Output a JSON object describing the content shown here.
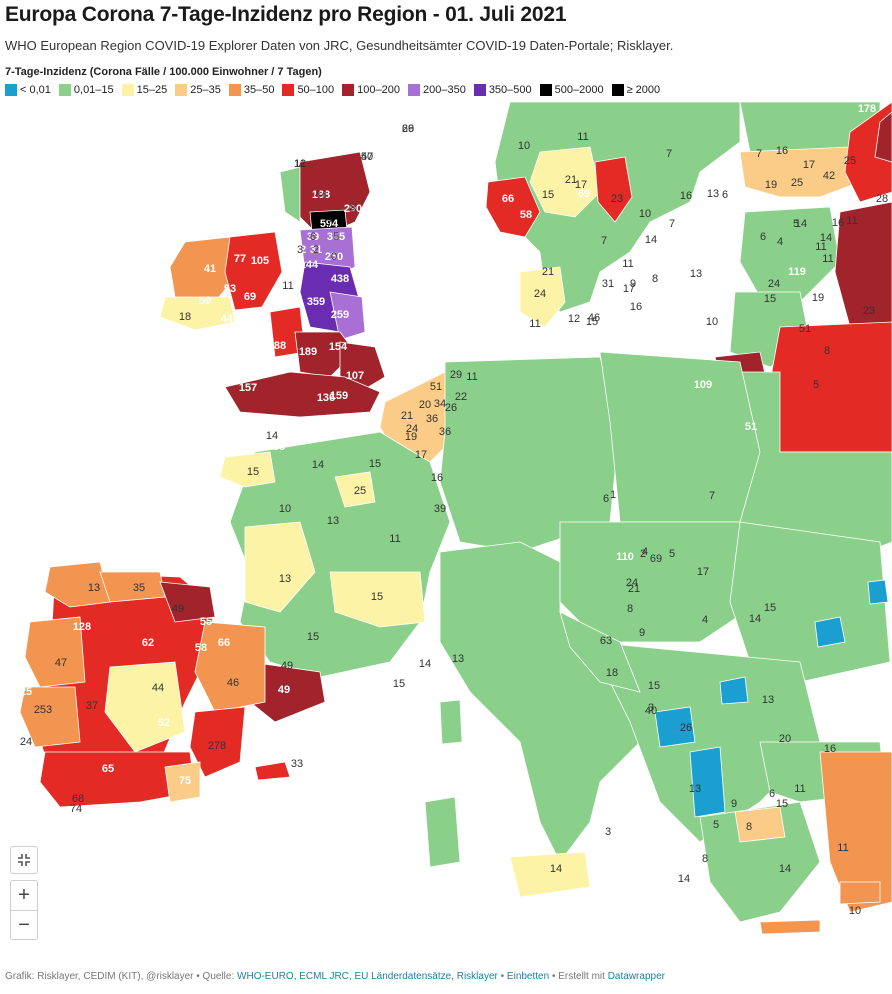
{
  "header": {
    "title": "Europa Corona 7-Tage-Inzidenz pro Region - 01. Juli 2021",
    "subtitle": "WHO European Region COVID-19 Explorer Daten von JRC, Gesundheitsämter COVID-19  Daten-Portale; Risklayer."
  },
  "legend": {
    "title": "7-Tage-Inzidenz (Corona Fälle / 100.000 Einwohner / 7 Tagen)",
    "items": [
      {
        "label": "< 0,01",
        "color": "#1b9fd1"
      },
      {
        "label": "0,01–15",
        "color": "#8ad08a"
      },
      {
        "label": "15–25",
        "color": "#fdf3a6"
      },
      {
        "label": "25–35",
        "color": "#fbcc88"
      },
      {
        "label": "35–50",
        "color": "#f29550"
      },
      {
        "label": "50–100",
        "color": "#e42a24"
      },
      {
        "label": "100–200",
        "color": "#a1232b"
      },
      {
        "label": "200–350",
        "color": "#a86fd5"
      },
      {
        "label": "350–500",
        "color": "#6a2cb0"
      },
      {
        "label": "500–2000",
        "color": "#000000"
      },
      {
        "label": "≥ 2000",
        "color": "#000000"
      }
    ]
  },
  "colors": {
    "green": "#8ad08a",
    "yellow": "#fdf3a6",
    "lightorange": "#fbcc88",
    "orange": "#f29550",
    "red": "#e42a24",
    "darkred": "#a1232b",
    "lightpurple": "#a86fd5",
    "purple": "#6a2cb0",
    "black": "#000000",
    "blue": "#1b9fd1",
    "sea": "#ffffff"
  },
  "map": {
    "region_labels": [
      {
        "text": "69",
        "c": "d"
      },
      {
        "text": "50",
        "c": "d"
      },
      {
        "text": "11",
        "c": "d"
      },
      {
        "text": "188",
        "c": "w"
      },
      {
        "text": "290",
        "c": "w"
      },
      {
        "text": "594",
        "c": "w"
      },
      {
        "text": "39",
        "c": "w"
      },
      {
        "text": "355",
        "c": "w"
      },
      {
        "text": "32",
        "c": "w"
      },
      {
        "text": "31",
        "c": "w"
      },
      {
        "text": "250",
        "c": "w"
      },
      {
        "text": "144",
        "c": "w"
      },
      {
        "text": "438",
        "c": "w"
      },
      {
        "text": "105",
        "c": "w"
      },
      {
        "text": "77",
        "c": "w"
      },
      {
        "text": "41",
        "c": "w"
      },
      {
        "text": "53",
        "c": "w"
      },
      {
        "text": "59",
        "c": "w"
      },
      {
        "text": "69",
        "c": "w"
      },
      {
        "text": "11",
        "c": "d"
      },
      {
        "text": "359",
        "c": "w"
      },
      {
        "text": "259",
        "c": "w"
      },
      {
        "text": "18",
        "c": "d"
      },
      {
        "text": "44",
        "c": "w"
      },
      {
        "text": "88",
        "c": "w"
      },
      {
        "text": "189",
        "c": "w"
      },
      {
        "text": "154",
        "c": "w"
      },
      {
        "text": "107",
        "c": "w"
      },
      {
        "text": "157",
        "c": "w"
      },
      {
        "text": "159",
        "c": "w"
      },
      {
        "text": "136",
        "c": "w"
      },
      {
        "text": "14",
        "c": "d"
      },
      {
        "text": "153",
        "c": "w"
      },
      {
        "text": "15",
        "c": "d"
      },
      {
        "text": "14",
        "c": "d"
      },
      {
        "text": "15",
        "c": "d"
      },
      {
        "text": "25",
        "c": "d"
      },
      {
        "text": "10",
        "c": "d"
      },
      {
        "text": "13",
        "c": "d"
      },
      {
        "text": "11",
        "c": "d"
      },
      {
        "text": "13",
        "c": "d"
      },
      {
        "text": "15",
        "c": "d"
      },
      {
        "text": "15",
        "c": "d"
      },
      {
        "text": "15",
        "c": "d"
      },
      {
        "text": "14",
        "c": "d"
      },
      {
        "text": "13",
        "c": "d"
      },
      {
        "text": "51",
        "c": "d"
      },
      {
        "text": "29",
        "c": "d"
      },
      {
        "text": "11",
        "c": "d"
      },
      {
        "text": "22",
        "c": "d"
      },
      {
        "text": "20",
        "c": "d"
      },
      {
        "text": "34",
        "c": "d"
      },
      {
        "text": "26",
        "c": "d"
      },
      {
        "text": "21",
        "c": "d"
      },
      {
        "text": "36",
        "c": "d"
      },
      {
        "text": "24",
        "c": "d"
      },
      {
        "text": "19",
        "c": "d"
      },
      {
        "text": "36",
        "c": "d"
      },
      {
        "text": "17",
        "c": "d"
      },
      {
        "text": "16",
        "c": "d"
      },
      {
        "text": "39",
        "c": "d"
      },
      {
        "text": "13",
        "c": "d"
      },
      {
        "text": "35",
        "c": "d"
      },
      {
        "text": "49",
        "c": "d"
      },
      {
        "text": "128",
        "c": "w"
      },
      {
        "text": "62",
        "c": "w"
      },
      {
        "text": "55",
        "c": "w"
      },
      {
        "text": "58",
        "c": "w"
      },
      {
        "text": "66",
        "c": "w"
      },
      {
        "text": "47",
        "c": "d"
      },
      {
        "text": "46",
        "c": "d"
      },
      {
        "text": "44",
        "c": "d"
      },
      {
        "text": "49",
        "c": "d"
      },
      {
        "text": "49",
        "c": "w"
      },
      {
        "text": "125",
        "c": "w"
      },
      {
        "text": "253",
        "c": "d"
      },
      {
        "text": "37",
        "c": "d"
      },
      {
        "text": "52",
        "c": "w"
      },
      {
        "text": "24",
        "c": "d"
      },
      {
        "text": "278",
        "c": "d"
      },
      {
        "text": "65",
        "c": "w"
      },
      {
        "text": "75",
        "c": "w"
      },
      {
        "text": "33",
        "c": "d"
      },
      {
        "text": "68",
        "c": "d"
      },
      {
        "text": "74",
        "c": "d"
      },
      {
        "text": "11",
        "c": "d"
      },
      {
        "text": "10",
        "c": "d"
      },
      {
        "text": "7",
        "c": "d"
      },
      {
        "text": "15",
        "c": "d"
      },
      {
        "text": "21",
        "c": "d"
      },
      {
        "text": "17",
        "c": "d"
      },
      {
        "text": "23",
        "c": "d"
      },
      {
        "text": "66",
        "c": "w"
      },
      {
        "text": "58",
        "c": "w"
      },
      {
        "text": "69",
        "c": "w"
      },
      {
        "text": "10",
        "c": "d"
      },
      {
        "text": "16",
        "c": "d"
      },
      {
        "text": "7",
        "c": "d"
      },
      {
        "text": "13",
        "c": "d"
      },
      {
        "text": "7",
        "c": "d"
      },
      {
        "text": "14",
        "c": "d"
      },
      {
        "text": "11",
        "c": "d"
      },
      {
        "text": "21",
        "c": "d"
      },
      {
        "text": "31",
        "c": "d"
      },
      {
        "text": "17",
        "c": "d"
      },
      {
        "text": "24",
        "c": "d"
      },
      {
        "text": "16",
        "c": "d"
      },
      {
        "text": "15",
        "c": "d"
      },
      {
        "text": "11",
        "c": "d"
      },
      {
        "text": "12",
        "c": "d"
      },
      {
        "text": "46",
        "c": "d"
      },
      {
        "text": "9",
        "c": "d"
      },
      {
        "text": "8",
        "c": "d"
      },
      {
        "text": "13",
        "c": "d"
      },
      {
        "text": "6",
        "c": "d"
      },
      {
        "text": "7",
        "c": "d"
      },
      {
        "text": "16",
        "c": "d"
      },
      {
        "text": "17",
        "c": "d"
      },
      {
        "text": "25",
        "c": "d"
      },
      {
        "text": "19",
        "c": "d"
      },
      {
        "text": "25",
        "c": "d"
      },
      {
        "text": "42",
        "c": "d"
      },
      {
        "text": "28",
        "c": "d"
      },
      {
        "text": "178",
        "c": "w"
      },
      {
        "text": "14",
        "c": "d"
      },
      {
        "text": "16",
        "c": "d"
      },
      {
        "text": "23",
        "c": "d"
      },
      {
        "text": "51",
        "c": "d"
      },
      {
        "text": "11",
        "c": "d"
      },
      {
        "text": "6",
        "c": "d"
      },
      {
        "text": "5",
        "c": "d"
      },
      {
        "text": "4",
        "c": "d"
      },
      {
        "text": "119",
        "c": "w"
      },
      {
        "text": "11",
        "c": "d"
      },
      {
        "text": "24",
        "c": "d"
      },
      {
        "text": "11",
        "c": "d"
      },
      {
        "text": "15",
        "c": "d"
      },
      {
        "text": "19",
        "c": "d"
      },
      {
        "text": "10",
        "c": "d"
      },
      {
        "text": "14",
        "c": "d"
      },
      {
        "text": "5",
        "c": "d"
      },
      {
        "text": "8",
        "c": "d"
      },
      {
        "text": "109",
        "c": "w"
      },
      {
        "text": "51",
        "c": "w"
      },
      {
        "text": "7",
        "c": "d"
      },
      {
        "text": "6",
        "c": "d"
      },
      {
        "text": "2",
        "c": "d"
      },
      {
        "text": "1",
        "c": "d"
      },
      {
        "text": "5",
        "c": "d"
      },
      {
        "text": "4",
        "c": "d"
      },
      {
        "text": "24",
        "c": "d"
      },
      {
        "text": "63",
        "c": "d"
      },
      {
        "text": "18",
        "c": "d"
      },
      {
        "text": "15",
        "c": "d"
      },
      {
        "text": "40",
        "c": "d"
      },
      {
        "text": "26",
        "c": "d"
      },
      {
        "text": "110",
        "c": "w"
      },
      {
        "text": "21",
        "c": "d"
      },
      {
        "text": "69",
        "c": "d"
      },
      {
        "text": "17",
        "c": "d"
      },
      {
        "text": "15",
        "c": "d"
      },
      {
        "text": "8",
        "c": "d"
      },
      {
        "text": "9",
        "c": "d"
      },
      {
        "text": "4",
        "c": "d"
      },
      {
        "text": "3",
        "c": "d"
      },
      {
        "text": "8",
        "c": "d"
      },
      {
        "text": "14",
        "c": "d"
      },
      {
        "text": "3",
        "c": "d"
      },
      {
        "text": "14",
        "c": "d"
      },
      {
        "text": "9",
        "c": "d"
      },
      {
        "text": "5",
        "c": "d"
      },
      {
        "text": "8",
        "c": "d"
      },
      {
        "text": "14",
        "c": "d"
      },
      {
        "text": "11",
        "c": "d"
      },
      {
        "text": "10",
        "c": "d"
      },
      {
        "text": "15",
        "c": "d"
      },
      {
        "text": "6",
        "c": "d"
      },
      {
        "text": "13",
        "c": "d"
      },
      {
        "text": "13",
        "c": "d"
      },
      {
        "text": "11",
        "c": "d"
      },
      {
        "text": "14",
        "c": "d"
      },
      {
        "text": "20",
        "c": "d"
      },
      {
        "text": "16",
        "c": "d"
      },
      {
        "text": "26",
        "c": "d"
      },
      {
        "text": "47",
        "c": "d"
      },
      {
        "text": "12",
        "c": "d"
      },
      {
        "text": "44",
        "c": "d"
      },
      {
        "text": "8",
        "c": "d"
      },
      {
        "text": "7",
        "c": "d"
      },
      {
        "text": "6",
        "c": "d"
      },
      {
        "text": "5",
        "c": "d"
      },
      {
        "text": "3",
        "c": "d"
      },
      {
        "text": "2",
        "c": "d"
      },
      {
        "text": "0",
        "c": "d"
      }
    ]
  },
  "controls": {
    "fullscreen_icon": "fullscreen-exit-icon",
    "zoom_in_label": "+",
    "zoom_out_label": "−"
  },
  "footer": {
    "prefix": "Grafik: Risklayer, CEDIM (KIT), @risklayer • Quelle: ",
    "source_link": "WHO-EURO, ECML JRC, EU Länderdatensätze, Risklayer",
    "sep1": " • ",
    "embed_link": "Einbetten",
    "sep2": " • Erstellt mit ",
    "made_with_link": "Datawrapper"
  }
}
